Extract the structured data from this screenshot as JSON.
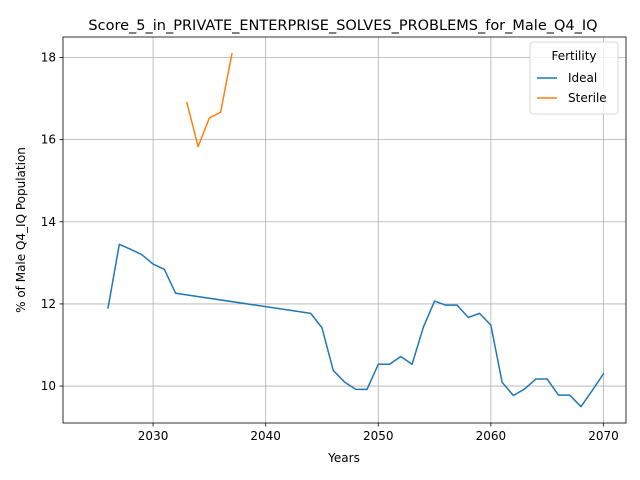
{
  "chart_data": {
    "type": "line",
    "title": "Score_5_in_PRIVATE_ENTERPRISE_SOLVES_PROBLEMS_for_Male_Q4_IQ",
    "xlabel": "Years",
    "ylabel": "% of Male Q4_IQ Population",
    "xlim": [
      2022,
      2072
    ],
    "ylim": [
      9.1,
      18.5
    ],
    "xticks": [
      2030,
      2040,
      2050,
      2060,
      2070
    ],
    "yticks": [
      10,
      12,
      14,
      16,
      18
    ],
    "grid": true,
    "legend": {
      "title": "Fertility",
      "position": "top-right"
    },
    "series": [
      {
        "name": "Ideal",
        "color": "#1f77b4",
        "x": [
          2026,
          2027,
          2028,
          2029,
          2030,
          2031,
          2032,
          2044,
          2045,
          2046,
          2047,
          2048,
          2049,
          2050,
          2051,
          2052,
          2053,
          2054,
          2055,
          2056,
          2057,
          2058,
          2059,
          2060,
          2061,
          2062,
          2063,
          2064,
          2065,
          2066,
          2067,
          2068,
          2069,
          2070
        ],
        "y": [
          11.9,
          13.45,
          13.33,
          13.2,
          12.97,
          12.84,
          12.26,
          11.77,
          11.42,
          10.38,
          10.1,
          9.92,
          9.92,
          10.53,
          10.53,
          10.72,
          10.53,
          11.43,
          12.07,
          11.97,
          11.97,
          11.67,
          11.77,
          11.48,
          10.09,
          9.77,
          9.93,
          10.17,
          10.17,
          9.78,
          9.78,
          9.5,
          9.89,
          10.3
        ]
      },
      {
        "name": "Sterile",
        "color": "#ff7f0e",
        "x": [
          2033,
          2034,
          2035,
          2036,
          2037
        ],
        "y": [
          16.9,
          15.83,
          16.53,
          16.67,
          18.09
        ]
      }
    ]
  }
}
